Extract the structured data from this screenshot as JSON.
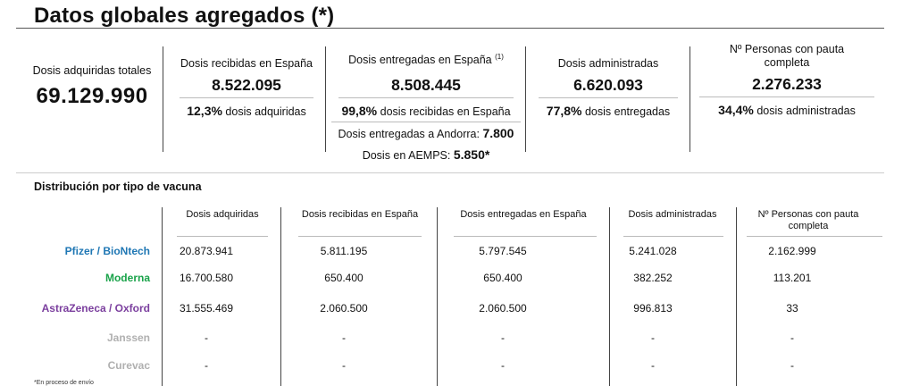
{
  "title": "Datos globales agregados (*)",
  "summary": {
    "adquiridas": {
      "label": "Dosis adquiridas totales",
      "value": "69.129.990"
    },
    "recibidas": {
      "label": "Dosis recibidas en España",
      "value": "8.522.095",
      "pct": "12,3%",
      "pct_text": "dosis adquiridas"
    },
    "entregadas": {
      "label": "Dosis entregadas en España",
      "note": "(1)",
      "value": "8.508.445",
      "pct": "99,8%",
      "pct_text": "dosis recibidas en España",
      "andorra_label": "Dosis entregadas a Andorra:",
      "andorra_value": "7.800",
      "aemps_label": "Dosis en AEMPS:",
      "aemps_value": "5.850*"
    },
    "administradas": {
      "label": "Dosis administradas",
      "value": "6.620.093",
      "pct": "77,8%",
      "pct_text": "dosis entregadas"
    },
    "pauta": {
      "label": "Nº Personas con pauta completa",
      "value": "2.276.233",
      "pct": "34,4%",
      "pct_text": "dosis administradas"
    }
  },
  "distribution": {
    "title": "Distribución por tipo de vacuna",
    "headers": [
      "Dosis adquiridas",
      "Dosis recibidas en España",
      "Dosis entregadas en España",
      "Dosis administradas",
      "Nº Personas con pauta completa"
    ],
    "rows": [
      {
        "name": "Pfizer / BioNtech",
        "color": "#1f77b4",
        "values": [
          "20.873.941",
          "5.811.195",
          "5.797.545",
          "5.241.028",
          "2.162.999"
        ]
      },
      {
        "name": "Moderna",
        "color": "#1aa34a",
        "values": [
          "16.700.580",
          "650.400",
          "650.400",
          "382.252",
          "113.201"
        ]
      },
      {
        "name": "AstraZeneca / Oxford",
        "color": "#7b3f9e",
        "values": [
          "31.555.469",
          "2.060.500",
          "2.060.500",
          "996.813",
          "33"
        ]
      },
      {
        "name": "Janssen",
        "color": "#b0b0b0",
        "values": [
          "-",
          "-",
          "-",
          "-",
          "-"
        ]
      },
      {
        "name": "Curevac",
        "color": "#b0b0b0",
        "values": [
          "-",
          "-",
          "-",
          "-",
          "-"
        ]
      }
    ],
    "footnote": "*En proceso de envío"
  }
}
